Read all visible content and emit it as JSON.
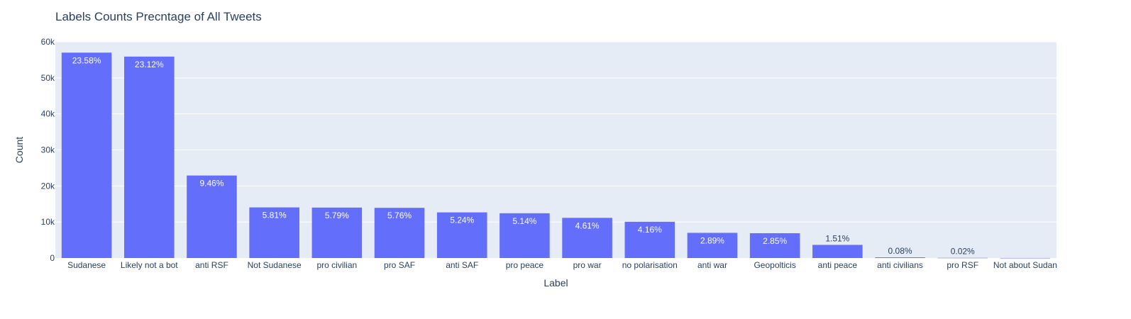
{
  "chart_data": {
    "type": "bar",
    "title": "Labels Counts Precntage of All Tweets",
    "xlabel": "Label",
    "ylabel": "Count",
    "ylim": [
      0,
      60000
    ],
    "ytick_values": [
      0,
      10000,
      20000,
      30000,
      40000,
      50000,
      60000
    ],
    "ytick_labels": [
      "0",
      "10k",
      "20k",
      "30k",
      "40k",
      "50k",
      "60k"
    ],
    "grid": true,
    "categories": [
      "Sudanese",
      "Likely not a bot",
      "anti RSF",
      "Not Sudanese",
      "pro civilian",
      "pro SAF",
      "anti SAF",
      "pro peace",
      "pro war",
      "no polarisation",
      "anti war",
      "Geopolticis",
      "anti peace",
      "anti civilians",
      "pro RSF",
      "Not about Sudan"
    ],
    "values": [
      57000,
      55900,
      22900,
      14050,
      14000,
      13930,
      12670,
      12430,
      11150,
      10060,
      6990,
      6890,
      3650,
      190,
      50,
      10
    ],
    "text_labels": [
      "23.58%",
      "23.12%",
      "9.46%",
      "5.81%",
      "5.79%",
      "5.76%",
      "5.24%",
      "5.14%",
      "4.61%",
      "4.16%",
      "2.89%",
      "2.85%",
      "1.51%",
      "0.08%",
      "0.02%",
      ""
    ],
    "bar_color": "#636efa",
    "plot_bg": "#e5ecf6"
  }
}
